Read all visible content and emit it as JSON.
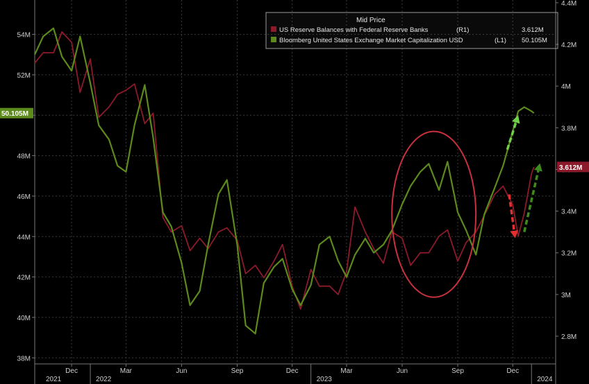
{
  "chart_data": {
    "type": "line",
    "legend": {
      "title": "Mid Price",
      "placement": "top-right",
      "entries": [
        {
          "series": "reserves",
          "label": "US Reserve Balances with Federal Reserve Banks",
          "axis_tag": "(R1)",
          "value_label": "3.612M"
        },
        {
          "series": "market_cap",
          "label": "Bloomberg United States Exchange Market Capitalization USD",
          "axis_tag": "(L1)",
          "value_label": "50.105M"
        }
      ]
    },
    "left_axis": {
      "min": 37.7,
      "max": 55.7,
      "ticks": [
        "38M",
        "40M",
        "42M",
        "44M",
        "46M",
        "48M",
        "50M",
        "52M",
        "54M"
      ],
      "tick_values": [
        38,
        40,
        42,
        44,
        46,
        48,
        50,
        52,
        54
      ]
    },
    "right_axis": {
      "min": 2.667,
      "max": 4.413,
      "ticks": [
        "2.8M",
        "3M",
        "3.2M",
        "3.4M",
        "3.6M",
        "3.8M",
        "4M",
        "4.2M",
        "4.4M"
      ],
      "tick_values": [
        2.8,
        3.0,
        3.2,
        3.4,
        3.6,
        3.8,
        4.0,
        4.2,
        4.4
      ]
    },
    "x_axis": {
      "range": [
        "2021-10-01",
        "2024-02-10"
      ],
      "month_ticks": [
        {
          "label": "Dec",
          "date": "2021-12-01"
        },
        {
          "label": "Mar",
          "date": "2022-03-01"
        },
        {
          "label": "Jun",
          "date": "2022-06-01"
        },
        {
          "label": "Sep",
          "date": "2022-09-01"
        },
        {
          "label": "Dec",
          "date": "2022-12-01"
        },
        {
          "label": "Mar",
          "date": "2023-03-01"
        },
        {
          "label": "Jun",
          "date": "2023-06-01"
        },
        {
          "label": "Sep",
          "date": "2023-09-01"
        },
        {
          "label": "Dec",
          "date": "2023-12-01"
        }
      ],
      "year_labels": [
        {
          "label": "2021",
          "date": "2021-10-01"
        },
        {
          "label": "2022",
          "date": "2022-01-01"
        },
        {
          "label": "2023",
          "date": "2023-01-01"
        },
        {
          "label": "2024",
          "date": "2024-01-01"
        }
      ],
      "year_dividers": [
        "2022-01-01",
        "2023-01-01",
        "2024-01-01"
      ]
    },
    "grid": true,
    "series": [
      {
        "id": "reserves",
        "axis": "right",
        "color": "#8c1a2b",
        "points": [
          [
            "2021-10-01",
            4.11
          ],
          [
            "2021-10-15",
            4.16
          ],
          [
            "2021-11-01",
            4.16
          ],
          [
            "2021-11-15",
            4.26
          ],
          [
            "2021-12-01",
            4.21
          ],
          [
            "2021-12-15",
            3.97
          ],
          [
            "2022-01-01",
            4.13
          ],
          [
            "2022-01-15",
            3.85
          ],
          [
            "2022-02-01",
            3.9
          ],
          [
            "2022-02-15",
            3.96
          ],
          [
            "2022-03-01",
            3.98
          ],
          [
            "2022-03-15",
            4.01
          ],
          [
            "2022-04-01",
            3.82
          ],
          [
            "2022-04-15",
            3.87
          ],
          [
            "2022-05-01",
            3.37
          ],
          [
            "2022-05-15",
            3.3
          ],
          [
            "2022-06-01",
            3.33
          ],
          [
            "2022-06-15",
            3.21
          ],
          [
            "2022-07-01",
            3.27
          ],
          [
            "2022-07-15",
            3.22
          ],
          [
            "2022-08-01",
            3.3
          ],
          [
            "2022-08-15",
            3.32
          ],
          [
            "2022-09-01",
            3.26
          ],
          [
            "2022-09-15",
            3.1
          ],
          [
            "2022-10-01",
            3.14
          ],
          [
            "2022-10-15",
            3.08
          ],
          [
            "2022-11-01",
            3.16
          ],
          [
            "2022-11-15",
            3.24
          ],
          [
            "2022-12-01",
            3.04
          ],
          [
            "2022-12-15",
            2.93
          ],
          [
            "2023-01-01",
            3.12
          ],
          [
            "2023-01-15",
            3.04
          ],
          [
            "2023-02-01",
            3.04
          ],
          [
            "2023-02-15",
            3.0
          ],
          [
            "2023-03-01",
            3.11
          ],
          [
            "2023-03-15",
            3.42
          ],
          [
            "2023-04-01",
            3.3
          ],
          [
            "2023-04-15",
            3.22
          ],
          [
            "2023-05-01",
            3.15
          ],
          [
            "2023-05-15",
            3.3
          ],
          [
            "2023-06-01",
            3.27
          ],
          [
            "2023-06-15",
            3.14
          ],
          [
            "2023-07-01",
            3.2
          ],
          [
            "2023-07-15",
            3.2
          ],
          [
            "2023-08-01",
            3.28
          ],
          [
            "2023-08-15",
            3.31
          ],
          [
            "2023-09-01",
            3.16
          ],
          [
            "2023-09-15",
            3.25
          ],
          [
            "2023-10-01",
            3.3
          ],
          [
            "2023-10-15",
            3.38
          ],
          [
            "2023-11-01",
            3.48
          ],
          [
            "2023-11-15",
            3.52
          ],
          [
            "2023-12-01",
            3.43
          ],
          [
            "2023-12-10",
            3.28
          ],
          [
            "2023-12-20",
            3.39
          ],
          [
            "2024-01-01",
            3.58
          ],
          [
            "2024-01-05",
            3.612
          ]
        ]
      },
      {
        "id": "market_cap",
        "axis": "left",
        "color": "#5d8a1c",
        "points": [
          [
            "2021-10-01",
            53.0
          ],
          [
            "2021-10-15",
            53.9
          ],
          [
            "2021-11-01",
            54.3
          ],
          [
            "2021-11-15",
            52.9
          ],
          [
            "2021-12-01",
            52.2
          ],
          [
            "2021-12-15",
            53.9
          ],
          [
            "2022-01-01",
            51.6
          ],
          [
            "2022-01-15",
            49.5
          ],
          [
            "2022-02-01",
            48.8
          ],
          [
            "2022-02-15",
            47.5
          ],
          [
            "2022-03-01",
            47.2
          ],
          [
            "2022-03-15",
            49.5
          ],
          [
            "2022-04-01",
            51.5
          ],
          [
            "2022-04-15",
            48.9
          ],
          [
            "2022-05-01",
            45.2
          ],
          [
            "2022-05-15",
            44.5
          ],
          [
            "2022-06-01",
            42.7
          ],
          [
            "2022-06-15",
            40.6
          ],
          [
            "2022-07-01",
            41.3
          ],
          [
            "2022-07-15",
            43.6
          ],
          [
            "2022-08-01",
            46.1
          ],
          [
            "2022-08-15",
            46.8
          ],
          [
            "2022-09-01",
            43.6
          ],
          [
            "2022-09-15",
            39.6
          ],
          [
            "2022-10-01",
            39.2
          ],
          [
            "2022-10-15",
            41.7
          ],
          [
            "2022-11-01",
            42.5
          ],
          [
            "2022-11-15",
            42.9
          ],
          [
            "2022-12-01",
            41.4
          ],
          [
            "2022-12-15",
            40.6
          ],
          [
            "2023-01-01",
            41.6
          ],
          [
            "2023-01-15",
            43.6
          ],
          [
            "2023-02-01",
            44.0
          ],
          [
            "2023-02-15",
            42.8
          ],
          [
            "2023-03-01",
            42.0
          ],
          [
            "2023-03-15",
            43.1
          ],
          [
            "2023-04-01",
            43.9
          ],
          [
            "2023-04-15",
            43.2
          ],
          [
            "2023-05-01",
            43.6
          ],
          [
            "2023-05-15",
            44.3
          ],
          [
            "2023-06-01",
            45.6
          ],
          [
            "2023-06-15",
            46.5
          ],
          [
            "2023-07-01",
            47.2
          ],
          [
            "2023-07-15",
            47.6
          ],
          [
            "2023-08-01",
            46.3
          ],
          [
            "2023-08-15",
            47.7
          ],
          [
            "2023-09-01",
            45.2
          ],
          [
            "2023-09-15",
            44.3
          ],
          [
            "2023-10-01",
            43.1
          ],
          [
            "2023-10-15",
            45.1
          ],
          [
            "2023-11-01",
            46.4
          ],
          [
            "2023-11-15",
            47.5
          ],
          [
            "2023-12-01",
            49.2
          ],
          [
            "2023-12-10",
            50.2
          ],
          [
            "2023-12-20",
            50.4
          ],
          [
            "2024-01-01",
            50.2
          ],
          [
            "2024-01-05",
            50.105
          ]
        ]
      }
    ],
    "callouts": [
      {
        "series": "market_cap",
        "axis": "left",
        "text": "50.105M",
        "color": "#5d8a1c"
      },
      {
        "series": "reserves",
        "axis": "right",
        "text": "3.612M",
        "color": "#8c1a2b"
      }
    ],
    "annotations": {
      "ellipse": {
        "color": "#c8313e",
        "from": "2023-05-15",
        "to": "2023-10-01",
        "range_left": [
          41.0,
          49.2
        ]
      },
      "arrows": [
        {
          "color": "#e23030",
          "axis": "right",
          "from": [
            "2023-11-25",
            3.48
          ],
          "to": [
            "2023-12-05",
            3.27
          ]
        },
        {
          "color": "#6fd04a",
          "axis": "left",
          "from": [
            "2023-11-22",
            48.3
          ],
          "to": [
            "2023-12-10",
            50.0
          ]
        },
        {
          "color": "#3f8a1c",
          "axis": "right",
          "from": [
            "2023-12-20",
            3.3
          ],
          "to": [
            "2024-01-15",
            3.63
          ]
        }
      ]
    }
  }
}
